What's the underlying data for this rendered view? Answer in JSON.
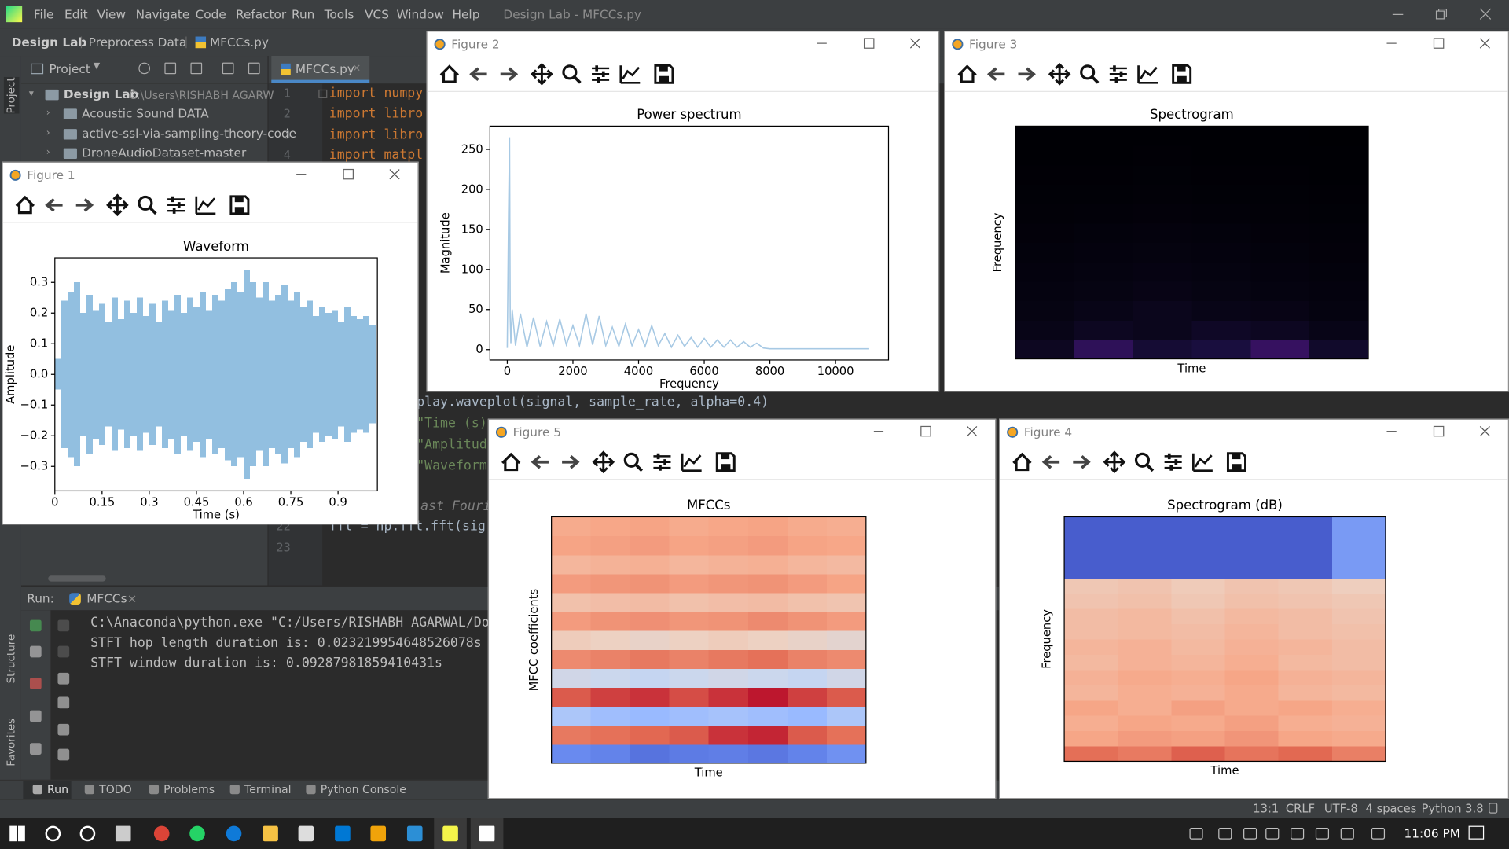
{
  "ide": {
    "menu": [
      "File",
      "Edit",
      "View",
      "Navigate",
      "Code",
      "Refactor",
      "Run",
      "Tools",
      "VCS",
      "Window",
      "Help"
    ],
    "window_title": "Design Lab - MFCCs.py",
    "breadcrumbs": [
      "Design Lab",
      "Preprocess Data",
      "MFCCs.py"
    ],
    "project_tool": "Project",
    "editor_tab": "MFCCs.py",
    "tree": [
      {
        "label": "Design Lab",
        "path": "C:\\Users\\RISHABH AGARW"
      },
      {
        "label": "Acoustic Sound DATA"
      },
      {
        "label": "active-ssl-via-sampling-theory-code"
      },
      {
        "label": "DroneAudioDataset-master"
      }
    ],
    "line_numbers": [
      1,
      2,
      3,
      4,
      22,
      23
    ],
    "code": [
      "import numpy",
      "import libro",
      "import libro",
      "import matpl",
      "play.waveplot(signal, sample_rate, alpha=0.4)",
      "\"Time (s)",
      "\"Amplitud",
      "\"Waveform\"",
      "ast Fouri",
      "fft = np.fft.fft(sig"
    ],
    "side_tabs": [
      "Project",
      "Structure",
      "Favorites"
    ],
    "run": {
      "label": "Run:",
      "tab": "MFCCs",
      "output": [
        "C:\\Anaconda\\python.exe \"C:/Users/RISHABH AGARWAL/Do",
        "STFT hop length duration is: 0.023219954648526078s",
        "STFT window duration is: 0.09287981859410431s"
      ]
    },
    "bottom_tabs": [
      "Run",
      "TODO",
      "Problems",
      "Terminal",
      "Python Console"
    ],
    "status": [
      "13:1",
      "CRLF",
      "UTF-8",
      "4 spaces",
      "Python 3.8"
    ],
    "clock": "11:06 PM"
  },
  "chart_data": [
    {
      "window_title": "Figure 1",
      "type": "area",
      "title": "Waveform",
      "x_label": "Time (s)",
      "y_label": "Amplitude",
      "color": "#92bfe0",
      "x": [
        0,
        0.02,
        0.04,
        0.06,
        0.08,
        0.1,
        0.12,
        0.14,
        0.16,
        0.18,
        0.2,
        0.22,
        0.24,
        0.26,
        0.28,
        0.3,
        0.32,
        0.34,
        0.36,
        0.38,
        0.4,
        0.42,
        0.44,
        0.46,
        0.48,
        0.5,
        0.52,
        0.54,
        0.56,
        0.58,
        0.6,
        0.62,
        0.64,
        0.66,
        0.68,
        0.7,
        0.72,
        0.74,
        0.76,
        0.78,
        0.8,
        0.82,
        0.84,
        0.86,
        0.88,
        0.9,
        0.92,
        0.94,
        0.96,
        0.98,
        1.0
      ],
      "values": [
        0.05,
        0.24,
        0.27,
        0.3,
        0.2,
        0.26,
        0.21,
        0.23,
        0.17,
        0.25,
        0.18,
        0.24,
        0.2,
        0.25,
        0.19,
        0.23,
        0.17,
        0.24,
        0.21,
        0.26,
        0.2,
        0.25,
        0.22,
        0.27,
        0.21,
        0.26,
        0.24,
        0.28,
        0.3,
        0.27,
        0.34,
        0.3,
        0.25,
        0.3,
        0.24,
        0.26,
        0.29,
        0.24,
        0.27,
        0.22,
        0.24,
        0.19,
        0.22,
        0.2,
        0.21,
        0.17,
        0.22,
        0.19,
        0.18,
        0.19,
        0.16
      ],
      "xlim": [
        0,
        1.025
      ],
      "ylim": [
        -0.38,
        0.38
      ],
      "xticks": [
        0,
        0.15,
        0.3,
        0.45,
        0.6,
        0.75,
        0.9
      ],
      "yticks": [
        {
          "value": -0.3,
          "label": "−0.3"
        },
        {
          "value": -0.2,
          "label": "−0.2"
        },
        {
          "value": -0.1,
          "label": "−0.1"
        },
        {
          "value": 0,
          "label": "0.0"
        },
        0.1,
        0.2,
        0.3
      ]
    },
    {
      "window_title": "Figure 2",
      "type": "line",
      "title": "Power spectrum",
      "x_label": "Frequency",
      "y_label": "Magnitude",
      "color": "#a7c9e4",
      "x": [
        0,
        40,
        70,
        90,
        110,
        150,
        250,
        400,
        600,
        800,
        1000,
        1200,
        1400,
        1600,
        1800,
        2000,
        2200,
        2400,
        2600,
        2800,
        3000,
        3200,
        3400,
        3600,
        3800,
        4000,
        4200,
        4400,
        4600,
        4800,
        5000,
        5200,
        5400,
        5600,
        5800,
        6000,
        6200,
        6400,
        6600,
        6800,
        7000,
        7200,
        7400,
        7600,
        7800,
        8000,
        9000,
        10000,
        11025
      ],
      "values": [
        2,
        170,
        265,
        40,
        8,
        50,
        5,
        45,
        3,
        40,
        4,
        35,
        5,
        38,
        6,
        30,
        5,
        45,
        6,
        42,
        5,
        28,
        4,
        32,
        5,
        25,
        4,
        30,
        5,
        20,
        3,
        18,
        4,
        15,
        3,
        14,
        3,
        12,
        3,
        12,
        3,
        10,
        3,
        8,
        2,
        1,
        1,
        1,
        1
      ],
      "xlim": [
        -528,
        11613
      ],
      "ylim": [
        -13,
        279
      ],
      "xticks": [
        0,
        2000,
        4000,
        6000,
        8000,
        10000
      ],
      "yticks": [
        0,
        50,
        100,
        150,
        200,
        250
      ]
    },
    {
      "window_title": "Figure 3",
      "type": "heatmap",
      "title": "Spectrogram",
      "x_label": "Time",
      "y_label": "Frequency",
      "colors": [
        "#000004",
        "#1c1044",
        "#4f127b",
        "#812581",
        "#b5367a",
        "#e55064",
        "#fb8761",
        "#fec287",
        "#fcfdbf"
      ],
      "clim": [
        0,
        53
      ],
      "cticks": [
        0,
        10,
        20,
        30,
        40,
        50
      ],
      "values": [
        [
          3,
          9,
          5,
          6,
          10,
          4
        ],
        [
          2,
          3,
          2.5,
          3.5,
          3,
          2
        ],
        [
          1.5,
          2,
          2.5,
          2,
          1.8,
          1.2
        ],
        [
          1.2,
          1.5,
          1.8,
          1.5,
          1.2,
          1
        ],
        [
          1,
          1.2,
          1.4,
          1.2,
          1,
          0.8
        ],
        [
          0.8,
          1,
          1.1,
          1,
          0.8,
          0.6
        ],
        [
          0.6,
          0.8,
          0.9,
          0.8,
          0.6,
          0.5
        ],
        [
          0.4,
          0.5,
          0.6,
          0.5,
          0.4,
          0.3
        ],
        [
          0.3,
          0.3,
          0.4,
          0.3,
          0.3,
          0.2
        ],
        [
          0.2,
          0.2,
          0.3,
          0.2,
          0.2,
          0.1
        ],
        [
          0.1,
          0.1,
          0.2,
          0.1,
          0.1,
          0.1
        ],
        [
          0.1,
          0.1,
          0.1,
          0.1,
          0.1,
          0
        ]
      ]
    },
    {
      "window_title": "Figure 4",
      "type": "heatmap",
      "title": "Spectrogram (dB)",
      "x_label": "Time",
      "y_label": "Frequency",
      "colors": [
        "#3b4cc0",
        "#6788ee",
        "#9abbff",
        "#c9d7f0",
        "#edd1c2",
        "#f7a889",
        "#e26952",
        "#b40426"
      ],
      "clim": [
        -45.3,
        34.4
      ],
      "cticks": [
        {
          "value": -40,
          "label": "-40 dB"
        },
        {
          "value": -30,
          "label": "-30 dB"
        },
        {
          "value": -20,
          "label": "-20 dB"
        },
        {
          "value": -10,
          "label": "-10 dB"
        },
        {
          "value": 0,
          "label": "+0 dB"
        },
        {
          "value": 10,
          "label": "+10 dB"
        },
        {
          "value": 20,
          "label": "+20 dB"
        },
        {
          "value": 30,
          "label": "+30 dB"
        }
      ],
      "values": [
        [
          22,
          20,
          24,
          21,
          23,
          19
        ],
        [
          12,
          14,
          13,
          15,
          12,
          11
        ],
        [
          10,
          12,
          11,
          13,
          10,
          9
        ],
        [
          12,
          10,
          13,
          11,
          12,
          10
        ],
        [
          8,
          10,
          9,
          11,
          8,
          7
        ],
        [
          9,
          11,
          10,
          12,
          9,
          8
        ],
        [
          7,
          9,
          8,
          10,
          7,
          6
        ],
        [
          8,
          9,
          7,
          9,
          8,
          6
        ],
        [
          6,
          7,
          6,
          8,
          6,
          5
        ],
        [
          6,
          7,
          5,
          7,
          6,
          4
        ],
        [
          4,
          5,
          3,
          5,
          4,
          3
        ],
        [
          3,
          4,
          2,
          4,
          3,
          1
        ],
        [
          -42,
          -42,
          -42,
          -42,
          -42,
          -30
        ],
        [
          -42,
          -42,
          -42,
          -42,
          -42,
          -30
        ],
        [
          -42,
          -42,
          -42,
          -42,
          -42,
          -30
        ],
        [
          -42,
          -42,
          -42,
          -42,
          -42,
          -30
        ]
      ]
    },
    {
      "window_title": "Figure 5",
      "type": "heatmap",
      "title": "MFCCs",
      "x_label": "Time",
      "y_label": "MFCC coefficients",
      "colors": [
        "#3b4cc0",
        "#6788ee",
        "#9abbff",
        "#c9d7f0",
        "#edd1c2",
        "#f7a889",
        "#e26952",
        "#b40426"
      ],
      "clim": [
        -159,
        102
      ],
      "cticks": [
        {
          "value": -150,
          "label": "−150"
        },
        {
          "value": -100,
          "label": "−100"
        },
        {
          "value": -50,
          "label": "−50"
        },
        0,
        50,
        100
      ],
      "values": [
        [
          -120,
          -125,
          -135,
          -130,
          -128,
          -132,
          -125,
          -115
        ],
        [
          55,
          60,
          65,
          70,
          85,
          90,
          70,
          60
        ],
        [
          -70,
          -80,
          -85,
          -80,
          -75,
          -80,
          -85,
          -70
        ],
        [
          70,
          80,
          85,
          75,
          85,
          95,
          80,
          70
        ],
        [
          -40,
          -45,
          -50,
          -45,
          -40,
          -45,
          -50,
          -40
        ],
        [
          45,
          50,
          55,
          50,
          55,
          60,
          50,
          45
        ],
        [
          -5,
          -10,
          -15,
          -10,
          -5,
          -10,
          -15,
          -20
        ],
        [
          35,
          40,
          42,
          38,
          40,
          45,
          40,
          35
        ],
        [
          5,
          8,
          10,
          5,
          8,
          10,
          5,
          2
        ],
        [
          35,
          38,
          40,
          35,
          38,
          40,
          35,
          30
        ],
        [
          15,
          18,
          20,
          15,
          18,
          20,
          15,
          12
        ],
        [
          30,
          32,
          35,
          30,
          32,
          35,
          30,
          28
        ],
        [
          25,
          28,
          30,
          25,
          28,
          30,
          25,
          22
        ]
      ]
    }
  ]
}
